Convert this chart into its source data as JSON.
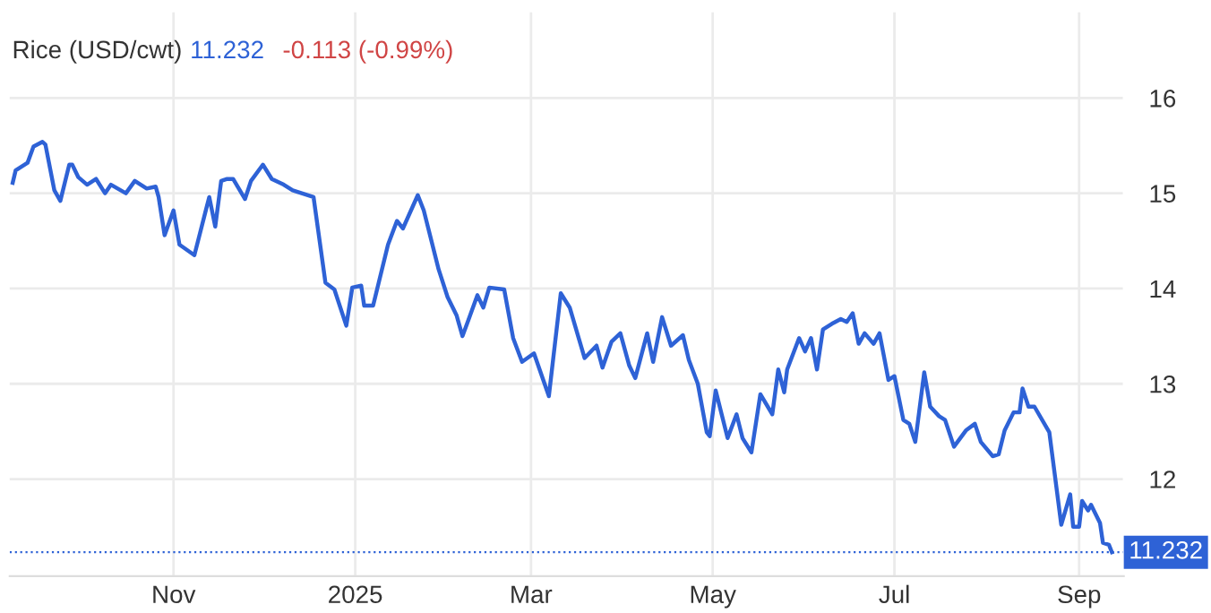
{
  "chart_data": {
    "type": "line",
    "title": "Rice (USD/cwt)",
    "subtitle": "11.232",
    "annotations": [
      "-0.113 (-0.99%)"
    ],
    "xlim": [
      "2024-09-07",
      "2025-09-16"
    ],
    "ylim": [
      10.98,
      16.9
    ],
    "yticks": [
      12,
      13,
      14,
      15,
      16
    ],
    "xticks": [
      {
        "value": "2024-11-01",
        "label": "Nov"
      },
      {
        "value": "2025-01-01",
        "label": "2025"
      },
      {
        "value": "2025-03-01",
        "label": "Mar"
      },
      {
        "value": "2025-05-01",
        "label": "May"
      },
      {
        "value": "2025-07-01",
        "label": "Jul"
      },
      {
        "value": "2025-09-01",
        "label": "Sep"
      }
    ],
    "grid": true,
    "marker": "none",
    "line_style": "solid",
    "ref_lines": [
      {
        "axis": "y",
        "value": 11.232,
        "label": "11.232",
        "color": "#2e62d6",
        "line_style": "dotted"
      }
    ],
    "series": [
      {
        "color": "#2e62d6",
        "x": [
          "2024-09-08",
          "2024-09-09",
          "2024-09-13",
          "2024-09-15",
          "2024-09-18",
          "2024-09-19",
          "2024-09-22",
          "2024-09-24",
          "2024-09-27",
          "2024-09-28",
          "2024-09-30",
          "2024-10-03",
          "2024-10-06",
          "2024-10-09",
          "2024-10-11",
          "2024-10-16",
          "2024-10-19",
          "2024-10-23",
          "2024-10-26",
          "2024-10-27",
          "2024-10-29",
          "2024-11-01",
          "2024-11-03",
          "2024-11-08",
          "2024-11-12",
          "2024-11-13",
          "2024-11-15",
          "2024-11-17",
          "2024-11-19",
          "2024-11-21",
          "2024-11-25",
          "2024-11-27",
          "2024-12-01",
          "2024-12-04",
          "2024-12-08",
          "2024-12-11",
          "2024-12-18",
          "2024-12-22",
          "2024-12-25",
          "2024-12-29",
          "2024-12-31",
          "2025-01-03",
          "2025-01-04",
          "2025-01-07",
          "2025-01-12",
          "2025-01-15",
          "2025-01-17",
          "2025-01-22",
          "2025-01-24",
          "2025-01-29",
          "2025-02-01",
          "2025-02-04",
          "2025-02-06",
          "2025-02-08",
          "2025-02-11",
          "2025-02-13",
          "2025-02-15",
          "2025-02-20",
          "2025-02-23",
          "2025-02-26",
          "2025-03-02",
          "2025-03-07",
          "2025-03-11",
          "2025-03-14",
          "2025-03-17",
          "2025-03-19",
          "2025-03-23",
          "2025-03-25",
          "2025-03-28",
          "2025-03-31",
          "2025-04-03",
          "2025-04-05",
          "2025-04-09",
          "2025-04-11",
          "2025-04-14",
          "2025-04-17",
          "2025-04-21",
          "2025-04-23",
          "2025-04-26",
          "2025-04-29",
          "2025-04-30",
          "2025-05-02",
          "2025-05-06",
          "2025-05-09",
          "2025-05-11",
          "2025-05-14",
          "2025-05-17",
          "2025-05-21",
          "2025-05-23",
          "2025-05-25",
          "2025-05-26",
          "2025-05-30",
          "2025-06-01",
          "2025-06-03",
          "2025-06-05",
          "2025-06-07",
          "2025-06-10",
          "2025-06-13",
          "2025-06-15",
          "2025-06-17",
          "2025-06-19",
          "2025-06-21",
          "2025-06-24",
          "2025-06-26",
          "2025-06-29",
          "2025-07-01",
          "2025-07-04",
          "2025-07-06",
          "2025-07-08",
          "2025-07-11",
          "2025-07-13",
          "2025-07-16",
          "2025-07-18",
          "2025-07-21",
          "2025-07-25",
          "2025-07-28",
          "2025-07-30",
          "2025-08-03",
          "2025-08-05",
          "2025-08-07",
          "2025-08-10",
          "2025-08-12",
          "2025-08-13",
          "2025-08-15",
          "2025-08-17",
          "2025-08-22",
          "2025-08-26",
          "2025-08-29",
          "2025-08-30",
          "2025-09-01",
          "2025-09-02",
          "2025-09-04",
          "2025-09-05",
          "2025-09-08",
          "2025-09-09",
          "2025-09-11",
          "2025-09-12"
        ],
        "values": [
          15.11,
          15.24,
          15.32,
          15.49,
          15.54,
          15.51,
          15.03,
          14.92,
          15.3,
          15.3,
          15.17,
          15.09,
          15.15,
          15.0,
          15.09,
          15.0,
          15.13,
          15.05,
          15.07,
          14.96,
          14.56,
          14.82,
          14.46,
          14.35,
          14.84,
          14.96,
          14.65,
          15.13,
          15.15,
          15.15,
          14.94,
          15.13,
          15.3,
          15.15,
          15.09,
          15.03,
          14.96,
          14.06,
          13.99,
          13.61,
          14.01,
          14.03,
          13.82,
          13.82,
          14.46,
          14.71,
          14.63,
          14.98,
          14.82,
          14.2,
          13.91,
          13.72,
          13.5,
          13.67,
          13.93,
          13.8,
          14.01,
          13.99,
          13.48,
          13.23,
          13.32,
          12.87,
          13.95,
          13.8,
          13.48,
          13.27,
          13.4,
          13.17,
          13.44,
          13.53,
          13.19,
          13.06,
          13.53,
          13.23,
          13.7,
          13.4,
          13.51,
          13.25,
          13.0,
          12.49,
          12.45,
          12.93,
          12.43,
          12.68,
          12.43,
          12.28,
          12.89,
          12.68,
          13.15,
          12.91,
          13.15,
          13.48,
          13.34,
          13.48,
          13.15,
          13.57,
          13.63,
          13.68,
          13.65,
          13.74,
          13.42,
          13.53,
          13.42,
          13.53,
          13.04,
          13.08,
          12.62,
          12.58,
          12.39,
          13.12,
          12.76,
          12.66,
          12.62,
          12.34,
          12.51,
          12.58,
          12.39,
          12.24,
          12.26,
          12.51,
          12.7,
          12.7,
          12.95,
          12.76,
          12.76,
          12.49,
          11.52,
          11.84,
          11.5,
          11.5,
          11.77,
          11.67,
          11.73,
          11.54,
          11.33,
          11.31,
          11.232
        ]
      }
    ]
  }
}
